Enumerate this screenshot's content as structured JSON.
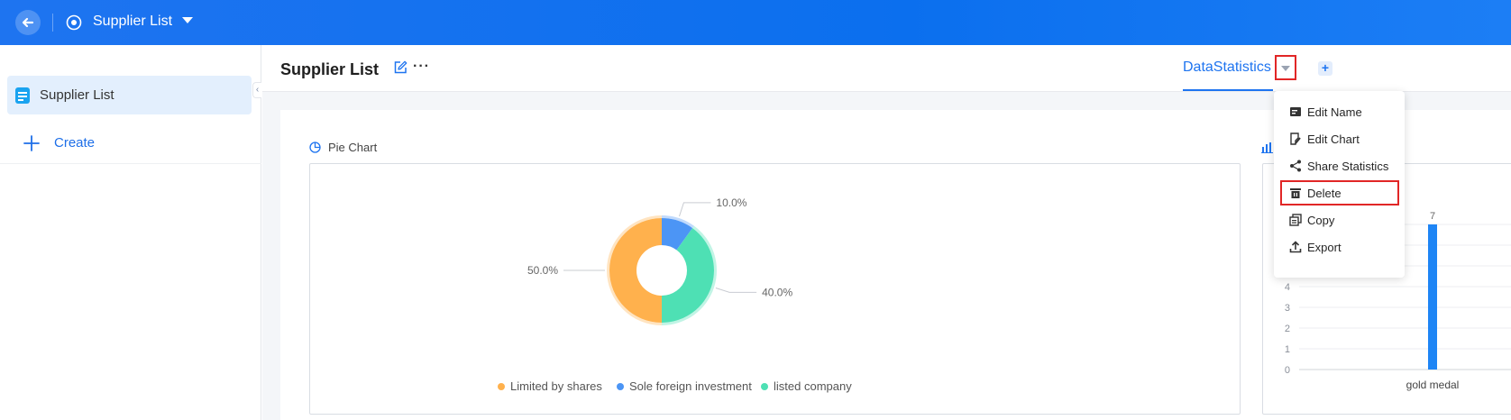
{
  "topbar": {
    "app_title": "Supplier List"
  },
  "sidebar": {
    "items": [
      {
        "label": "Supplier List"
      }
    ],
    "create_label": "Create"
  },
  "header": {
    "page_title": "Supplier List",
    "more_label": "···",
    "tab_label": "DataStatistics",
    "add_tab_label": "+"
  },
  "pie": {
    "section_title": "Pie Chart"
  },
  "chart_data": [
    {
      "type": "pie",
      "title": "Pie Chart",
      "categories": [
        "Limited by shares",
        "Sole foreign investment",
        "listed company"
      ],
      "values": [
        50.0,
        10.0,
        40.0
      ],
      "labels": [
        "50.0%",
        "10.0%",
        "40.0%"
      ],
      "colors": [
        "#ffb14d",
        "#4c95f5",
        "#4ee0b4"
      ],
      "legend_position": "bottom"
    },
    {
      "type": "bar",
      "categories": [
        "gold medal"
      ],
      "values": [
        7
      ],
      "data_labels": [
        "7"
      ],
      "yticks": [
        "0",
        "1",
        "2",
        "3",
        "4"
      ],
      "ylim": [
        0,
        7
      ],
      "color": "#1e85f5"
    }
  ],
  "context_menu": {
    "items": [
      {
        "label": "Edit Name",
        "icon": "edit-name-icon"
      },
      {
        "label": "Edit Chart",
        "icon": "edit-chart-icon"
      },
      {
        "label": "Share Statistics",
        "icon": "share-icon"
      },
      {
        "label": "Delete",
        "icon": "trash-icon"
      },
      {
        "label": "Copy",
        "icon": "copy-icon"
      },
      {
        "label": "Export",
        "icon": "export-icon"
      }
    ]
  },
  "colors": {
    "primary": "#1e74f0",
    "highlight": "#e12626"
  }
}
